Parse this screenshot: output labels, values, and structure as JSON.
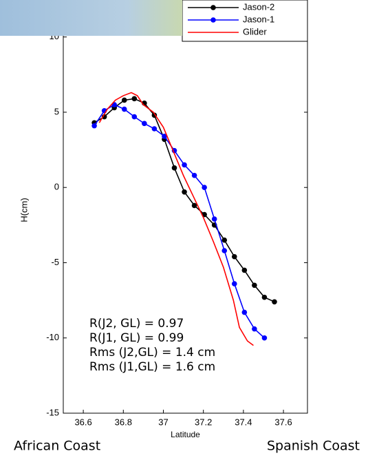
{
  "chart_data": {
    "type": "line",
    "xlabel": "Latitude",
    "ylabel": "H(cm)",
    "xlim": [
      36.5,
      37.72
    ],
    "ylim": [
      -15,
      12
    ],
    "xticks": [
      36.6,
      36.8,
      37,
      37.2,
      37.4,
      37.6
    ],
    "yticks": [
      -15,
      -10,
      -5,
      0,
      5,
      10
    ],
    "legend": "upper right",
    "series": [
      {
        "name": "Jason-2",
        "color": "#000000",
        "marker": true,
        "x": [
          36.655,
          36.705,
          36.755,
          36.805,
          36.855,
          36.905,
          36.955,
          37.005,
          37.055,
          37.105,
          37.155,
          37.205,
          37.255,
          37.305,
          37.355,
          37.405,
          37.455,
          37.505,
          37.555
        ],
        "values": [
          4.3,
          4.7,
          5.3,
          5.8,
          5.9,
          5.6,
          4.8,
          3.2,
          1.3,
          -0.3,
          -1.2,
          -1.8,
          -2.5,
          -3.5,
          -4.6,
          -5.5,
          -6.5,
          -7.3,
          -7.6
        ]
      },
      {
        "name": "Jason-1",
        "color": "#0000ff",
        "marker": true,
        "x": [
          36.655,
          36.705,
          36.755,
          36.805,
          36.855,
          36.905,
          36.955,
          37.005,
          37.055,
          37.105,
          37.155,
          37.205,
          37.255,
          37.305,
          37.355,
          37.405,
          37.455,
          37.505,
          37.555
        ],
        "values": [
          4.1,
          5.1,
          5.5,
          5.2,
          4.7,
          4.25,
          3.9,
          3.4,
          2.45,
          1.5,
          0.8,
          0.0,
          -2.1,
          -4.2,
          -6.4,
          -8.3,
          -9.4,
          -10.0,
          null
        ]
      },
      {
        "name": "Glider",
        "color": "#ff0000",
        "marker": false,
        "x": [
          36.68,
          36.72,
          36.76,
          36.8,
          36.84,
          36.87,
          36.9,
          36.95,
          37.0,
          37.05,
          37.1,
          37.15,
          37.2,
          37.25,
          37.3,
          37.35,
          37.38,
          37.42,
          37.45
        ],
        "values": [
          4.3,
          5.2,
          5.8,
          6.1,
          6.3,
          6.1,
          5.5,
          5.0,
          4.0,
          2.4,
          0.8,
          -0.6,
          -2.0,
          -3.6,
          -5.3,
          -7.5,
          -9.3,
          -10.2,
          -10.5
        ]
      }
    ],
    "annotations": [
      "R(J2, GL) = 0.97",
      "R(J1, GL) = 0.99",
      "Rms (J2,GL) = 1.4 cm",
      "Rms (J1,GL) = 1.6 cm"
    ]
  },
  "footer": {
    "left": "African Coast",
    "right": "Spanish Coast"
  }
}
